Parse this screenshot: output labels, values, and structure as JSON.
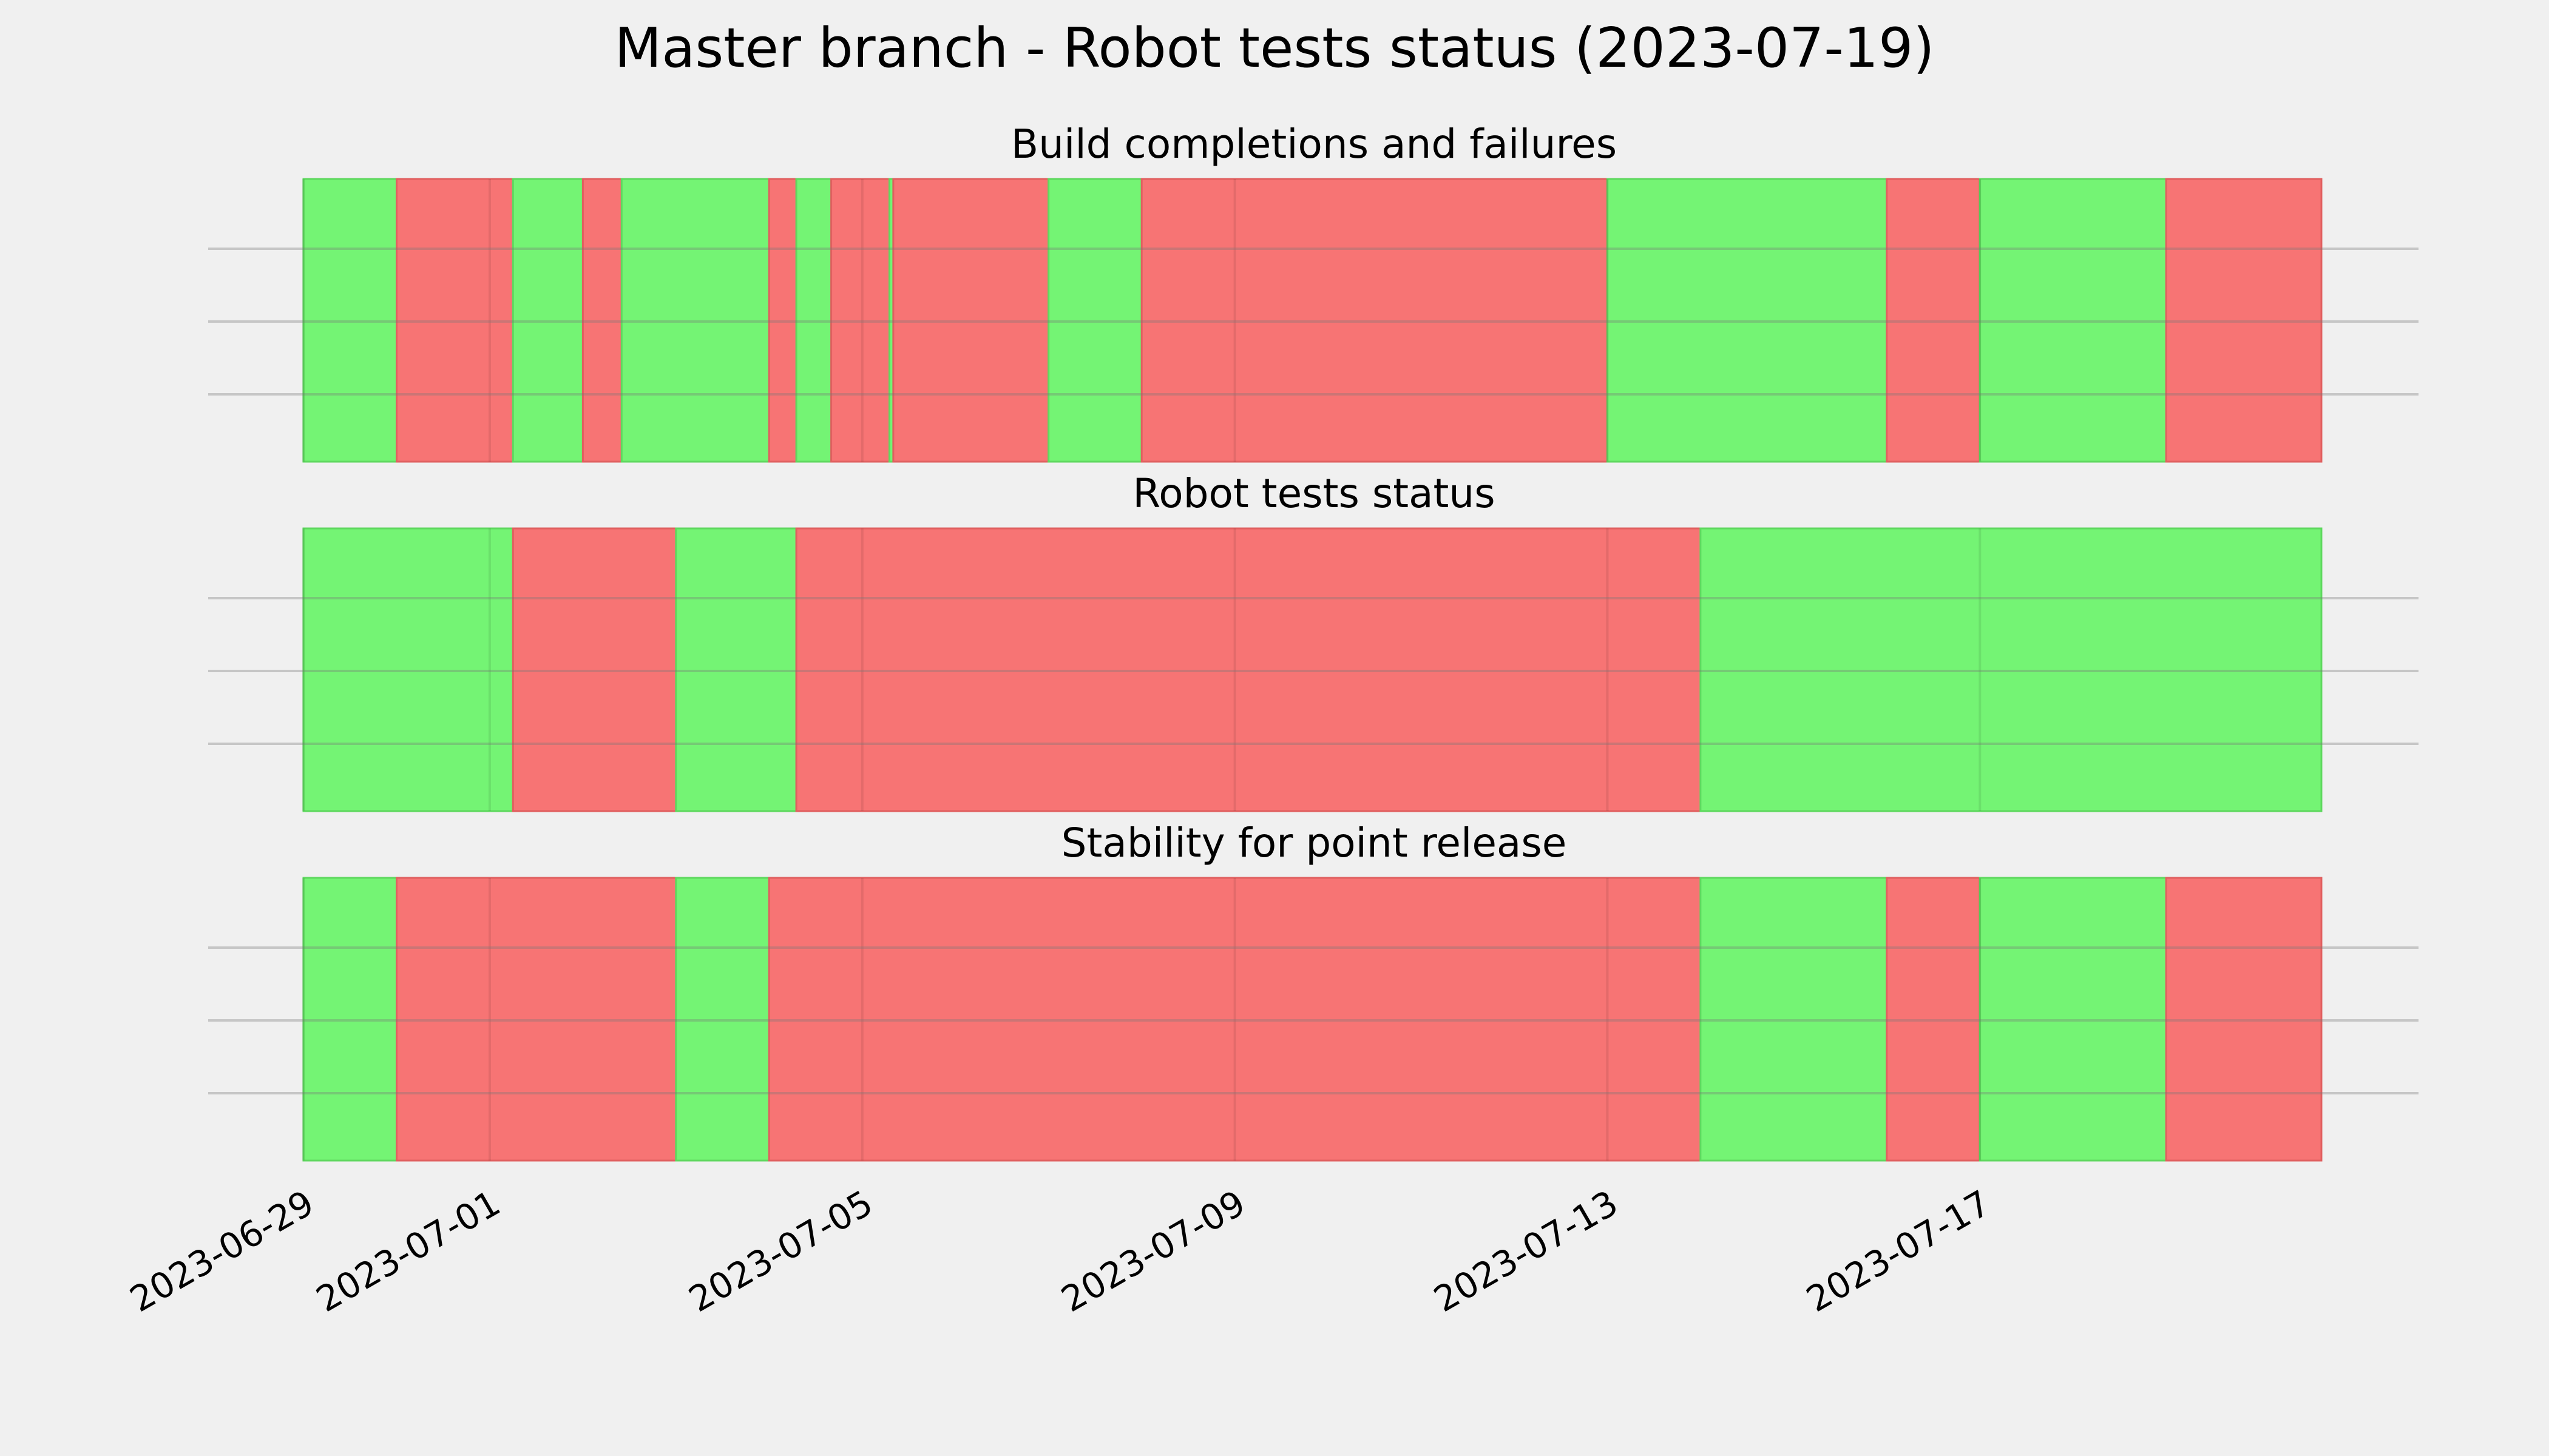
{
  "title": "Master branch - Robot tests status (2023-07-19)",
  "colors": {
    "background": "#f0f0f0",
    "pass": "#74f474",
    "fail": "#f77474",
    "grid": "#c8c8c8"
  },
  "chart_data": [
    {
      "type": "bar",
      "title": "Build completions and failures",
      "xlim": [
        "2023-06-29",
        "2023-07-19T18:00"
      ],
      "xticks": [
        "2023-06-29",
        "2023-07-01",
        "2023-07-05",
        "2023-07-09",
        "2023-07-13",
        "2023-07-17"
      ],
      "segments": [
        {
          "start": "2023-06-29T00:00",
          "end": "2023-06-30T00:00",
          "status": "pass"
        },
        {
          "start": "2023-06-30T00:00",
          "end": "2023-07-01T06:00",
          "status": "fail"
        },
        {
          "start": "2023-07-01T06:00",
          "end": "2023-07-02T00:00",
          "status": "pass"
        },
        {
          "start": "2023-07-02T00:00",
          "end": "2023-07-02T10:00",
          "status": "fail"
        },
        {
          "start": "2023-07-02T10:00",
          "end": "2023-07-04T00:00",
          "status": "pass"
        },
        {
          "start": "2023-07-04T00:00",
          "end": "2023-07-04T07:00",
          "status": "fail"
        },
        {
          "start": "2023-07-04T07:00",
          "end": "2023-07-04T16:00",
          "status": "pass"
        },
        {
          "start": "2023-07-04T16:00",
          "end": "2023-07-05T07:00",
          "status": "fail"
        },
        {
          "start": "2023-07-05T07:00",
          "end": "2023-07-05T08:00",
          "status": "pass"
        },
        {
          "start": "2023-07-05T08:00",
          "end": "2023-07-07T00:00",
          "status": "fail"
        },
        {
          "start": "2023-07-07T00:00",
          "end": "2023-07-08T00:00",
          "status": "pass"
        },
        {
          "start": "2023-07-08T00:00",
          "end": "2023-07-13T00:00",
          "status": "fail"
        },
        {
          "start": "2023-07-13T00:00",
          "end": "2023-07-16T00:00",
          "status": "pass"
        },
        {
          "start": "2023-07-16T00:00",
          "end": "2023-07-17T00:00",
          "status": "fail"
        },
        {
          "start": "2023-07-17T00:00",
          "end": "2023-07-19T00:00",
          "status": "pass"
        },
        {
          "start": "2023-07-19T00:00",
          "end": "2023-07-20T16:00",
          "status": "fail"
        }
      ]
    },
    {
      "type": "bar",
      "title": "Robot tests status",
      "xlim": [
        "2023-06-29",
        "2023-07-19T18:00"
      ],
      "xticks": [
        "2023-06-29",
        "2023-07-01",
        "2023-07-05",
        "2023-07-09",
        "2023-07-13",
        "2023-07-17"
      ],
      "segments": [
        {
          "start": "2023-06-29T00:00",
          "end": "2023-07-01T06:00",
          "status": "pass"
        },
        {
          "start": "2023-07-01T06:00",
          "end": "2023-07-03T00:00",
          "status": "fail"
        },
        {
          "start": "2023-07-03T00:00",
          "end": "2023-07-04T07:00",
          "status": "pass"
        },
        {
          "start": "2023-07-04T07:00",
          "end": "2023-07-14T00:00",
          "status": "fail"
        },
        {
          "start": "2023-07-14T00:00",
          "end": "2023-07-20T16:00",
          "status": "pass"
        }
      ]
    },
    {
      "type": "bar",
      "title": "Stability for point release",
      "xlim": [
        "2023-06-29",
        "2023-07-19T18:00"
      ],
      "xticks": [
        "2023-06-29",
        "2023-07-01",
        "2023-07-05",
        "2023-07-09",
        "2023-07-13",
        "2023-07-17"
      ],
      "segments": [
        {
          "start": "2023-06-29T00:00",
          "end": "2023-06-30T00:00",
          "status": "pass"
        },
        {
          "start": "2023-06-30T00:00",
          "end": "2023-07-03T00:00",
          "status": "fail"
        },
        {
          "start": "2023-07-03T00:00",
          "end": "2023-07-04T00:00",
          "status": "pass"
        },
        {
          "start": "2023-07-04T00:00",
          "end": "2023-07-14T00:00",
          "status": "fail"
        },
        {
          "start": "2023-07-14T00:00",
          "end": "2023-07-16T00:00",
          "status": "pass"
        },
        {
          "start": "2023-07-16T00:00",
          "end": "2023-07-17T00:00",
          "status": "fail"
        },
        {
          "start": "2023-07-17T00:00",
          "end": "2023-07-19T00:00",
          "status": "pass"
        },
        {
          "start": "2023-07-19T00:00",
          "end": "2023-07-20T16:00",
          "status": "fail"
        }
      ]
    }
  ]
}
